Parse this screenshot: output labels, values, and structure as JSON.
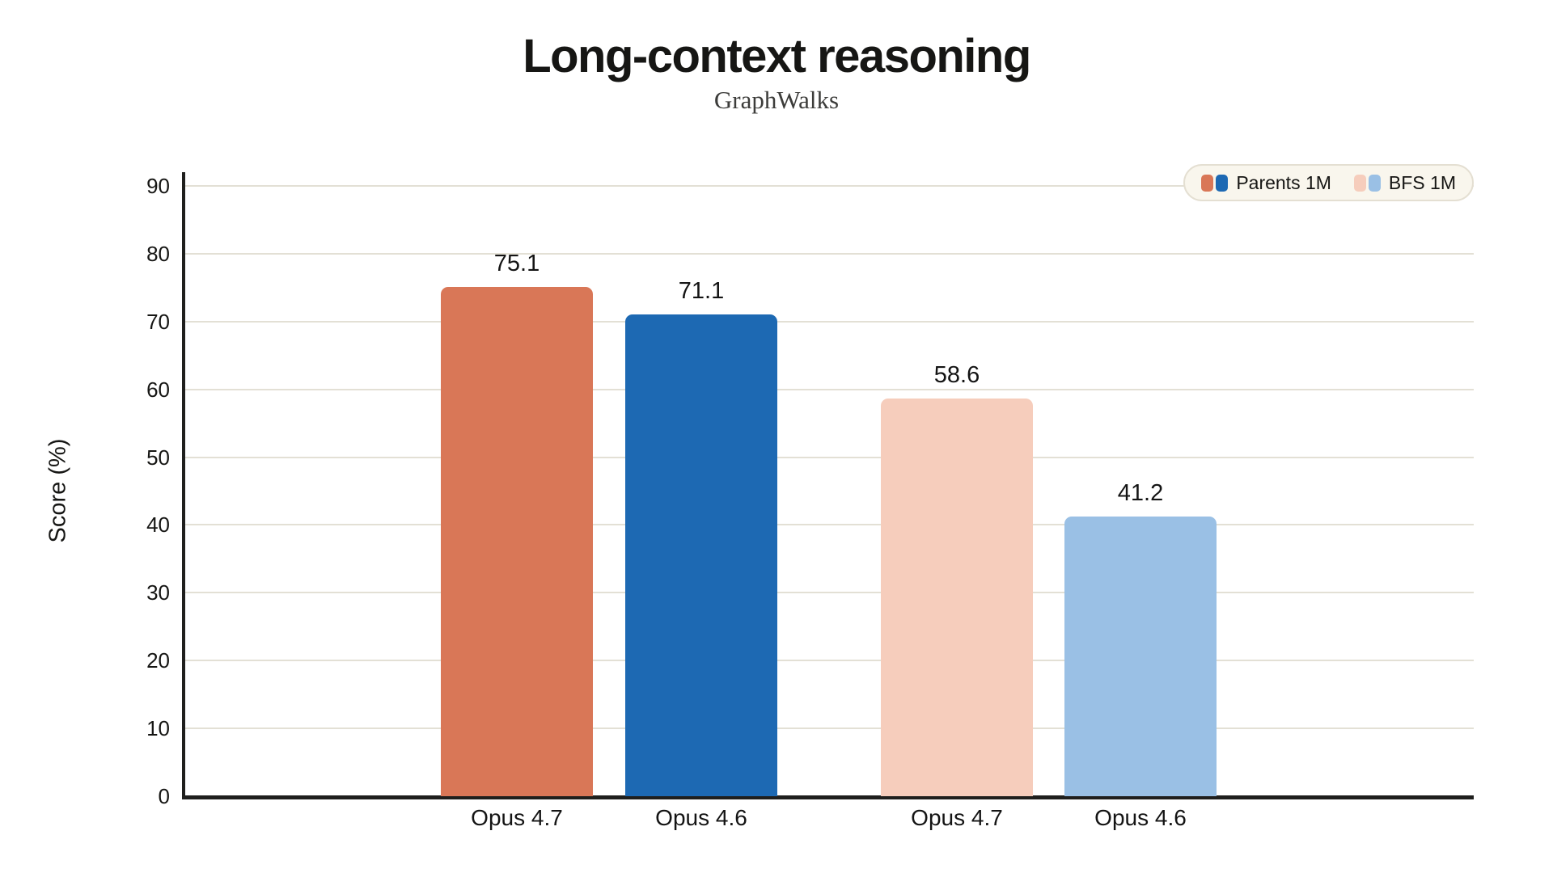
{
  "chart": {
    "title": "Long-context reasoning",
    "subtitle": "GraphWalks",
    "ylabel": "Score (%)"
  },
  "legend": {
    "entries": [
      {
        "label": "Parents 1M",
        "swatch_colors": [
          "#d97757",
          "#1d69b3"
        ]
      },
      {
        "label": "BFS 1M",
        "swatch_colors": [
          "#f6cdbc",
          "#9ac0e5"
        ]
      }
    ]
  },
  "chart_data": {
    "type": "bar",
    "title": "Long-context reasoning",
    "subtitle": "GraphWalks",
    "xlabel": "",
    "ylabel": "Score (%)",
    "ylim": [
      0,
      90
    ],
    "ytick_step": 10,
    "ytick_labels": [
      "0",
      "10",
      "20",
      "30",
      "40",
      "50",
      "60",
      "70",
      "80",
      "90"
    ],
    "grid": true,
    "legend_position": "top-right",
    "categories": [
      "Opus 4.7",
      "Opus 4.6",
      "Opus 4.7",
      "Opus 4.6"
    ],
    "bars": [
      {
        "category": "Opus 4.7",
        "series": "Parents 1M",
        "value": 75.1,
        "value_label": "75.1",
        "color": "#d97757"
      },
      {
        "category": "Opus 4.6",
        "series": "Parents 1M",
        "value": 71.1,
        "value_label": "71.1",
        "color": "#1d69b3"
      },
      {
        "category": "Opus 4.7",
        "series": "BFS 1M",
        "value": 58.6,
        "value_label": "58.6",
        "color": "#f6cdbc"
      },
      {
        "category": "Opus 4.6",
        "series": "BFS 1M",
        "value": 41.2,
        "value_label": "41.2",
        "color": "#9ac0e5"
      }
    ],
    "series": [
      {
        "name": "Parents 1M",
        "values": [
          75.1,
          71.1
        ]
      },
      {
        "name": "BFS 1M",
        "values": [
          58.6,
          41.2
        ]
      }
    ],
    "colors": {
      "axis": "#1f1f1d",
      "gridline": "#e3e0d5",
      "background": "#ffffff",
      "legend_background": "#f9f6ed",
      "legend_border": "#e4dfd2",
      "text": "#161614"
    }
  }
}
